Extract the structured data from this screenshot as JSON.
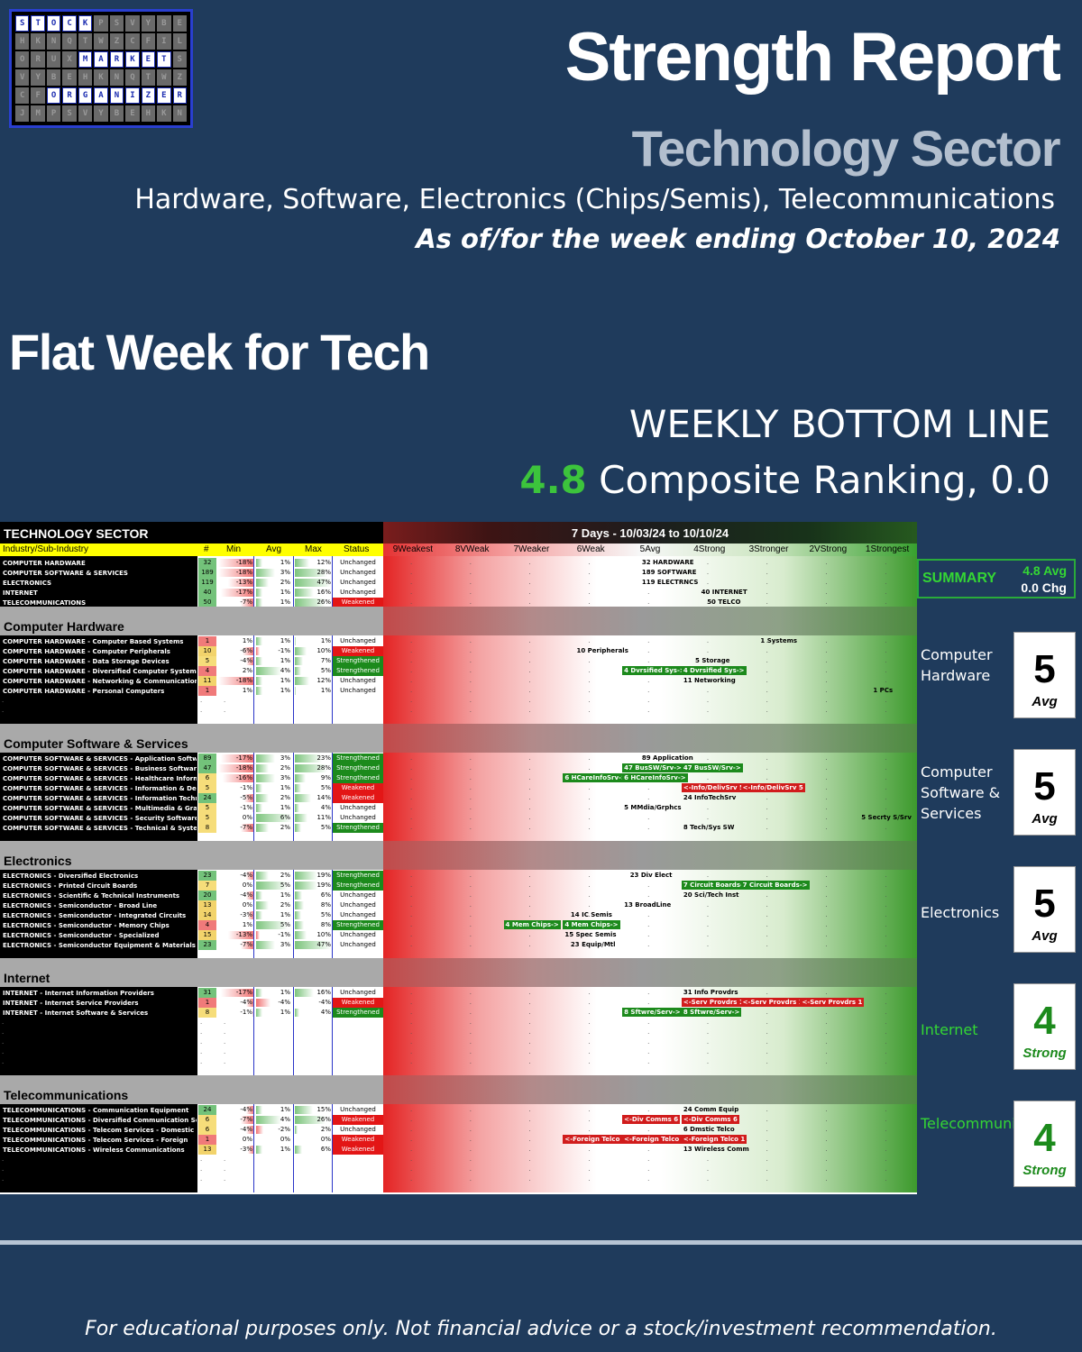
{
  "header": {
    "title": "Strength Report",
    "subtitle": "Technology Sector",
    "description": "Hardware, Software, Electronics (Chips/Semis), Telecommunications",
    "date_line": "As of/for the week ending October 10, 2024"
  },
  "logo": {
    "row1": [
      "S",
      "T",
      "O",
      "C",
      "K"
    ],
    "row3": [
      "M",
      "A",
      "R",
      "K",
      "E",
      "T"
    ],
    "row5": [
      "O",
      "R",
      "G",
      "A",
      "N",
      "I",
      "Z",
      "E",
      "R"
    ]
  },
  "headline": "Flat Week for Tech",
  "bottom_line": {
    "label": "WEEKLY BOTTOM LINE",
    "score": "4.8",
    "text": " Composite Ranking, 0.0"
  },
  "table": {
    "sector_title": "TECHNOLOGY SECTOR",
    "period": "7 Days - 10/03/24 to 10/10/24",
    "headers": [
      "Industry/Sub-Industry",
      "#",
      "Min",
      "Avg",
      "Max",
      "Status"
    ],
    "zones": [
      "9Weakest",
      "8VWeak",
      "7Weaker",
      "6Weak",
      "5Avg",
      "4Strong",
      "3Stronger",
      "2VStrong",
      "1Strongest"
    ],
    "sector_rows": [
      {
        "name": "COMPUTER HARDWARE",
        "count": "32",
        "min": "-18%",
        "avg": "1%",
        "max": "12%",
        "status": "Unchanged",
        "marks": [
          {
            "text": "32 HARDWARE",
            "zone": 4.3,
            "c": ""
          }
        ]
      },
      {
        "name": "COMPUTER SOFTWARE & SERVICES",
        "count": "189",
        "min": "-18%",
        "avg": "3%",
        "max": "28%",
        "status": "Unchanged",
        "marks": [
          {
            "text": "189 SOFTWARE",
            "zone": 4.3,
            "c": ""
          }
        ]
      },
      {
        "name": "ELECTRONICS",
        "count": "119",
        "min": "-13%",
        "avg": "2%",
        "max": "47%",
        "status": "Unchanged",
        "marks": [
          {
            "text": "119 ELECTRNCS",
            "zone": 4.3,
            "c": ""
          }
        ]
      },
      {
        "name": "INTERNET",
        "count": "40",
        "min": "-17%",
        "avg": "1%",
        "max": "16%",
        "status": "Unchanged",
        "marks": [
          {
            "text": "40 INTERNET",
            "zone": 5.3,
            "c": ""
          }
        ]
      },
      {
        "name": "TELECOMMUNICATIONS",
        "count": "50",
        "min": "-7%",
        "avg": "1%",
        "max": "26%",
        "status": "Weakened",
        "marks": [
          {
            "text": "50 TELCO",
            "zone": 5.4,
            "c": ""
          }
        ]
      }
    ],
    "groups": [
      {
        "title": "Computer Hardware",
        "rows": [
          {
            "name": "COMPUTER HARDWARE - Computer Based Systems",
            "count": "1",
            "min": "1%",
            "avg": "1%",
            "max": "1%",
            "status": "Unchanged",
            "marks": [
              {
                "text": "1 Systems",
                "zone": 6.3,
                "c": ""
              }
            ]
          },
          {
            "name": "COMPUTER HARDWARE - Computer Peripherals",
            "count": "10",
            "min": "-6%",
            "avg": "-1%",
            "max": "10%",
            "status": "Weakened",
            "marks": [
              {
                "text": "10 Peripherals",
                "zone": 3.2,
                "c": ""
              }
            ]
          },
          {
            "name": "COMPUTER HARDWARE - Data Storage Devices",
            "count": "5",
            "min": "-4%",
            "avg": "1%",
            "max": "7%",
            "status": "Strengthened",
            "marks": [
              {
                "text": "5 Storage",
                "zone": 5.2,
                "c": ""
              }
            ]
          },
          {
            "name": "COMPUTER HARDWARE - Diversified Computer Systems",
            "count": "4",
            "min": "2%",
            "avg": "4%",
            "max": "5%",
            "status": "Strengthened",
            "marks": [
              {
                "text": "4 Dvrsified Sys->",
                "zone": 4.0,
                "c": "g"
              },
              {
                "text": "4 Dvrsified Sys->",
                "zone": 5.0,
                "c": "g"
              }
            ]
          },
          {
            "name": "COMPUTER HARDWARE - Networking & Communication Dev",
            "count": "11",
            "min": "-18%",
            "avg": "1%",
            "max": "12%",
            "status": "Unchanged",
            "marks": [
              {
                "text": "11 Networking",
                "zone": 5.0,
                "c": ""
              }
            ]
          },
          {
            "name": "COMPUTER HARDWARE - Personal Computers",
            "count": "1",
            "min": "1%",
            "avg": "1%",
            "max": "1%",
            "status": "Unchanged",
            "marks": [
              {
                "text": "1 PCs",
                "zone": 8.2,
                "c": ""
              }
            ]
          }
        ],
        "panel_label": "Computer Hardware",
        "score": "5",
        "tag": "Avg"
      },
      {
        "title": "Computer Software & Services",
        "rows": [
          {
            "name": "COMPUTER SOFTWARE & SERVICES - Application Software",
            "count": "89",
            "min": "-17%",
            "avg": "3%",
            "max": "23%",
            "status": "Strengthened",
            "marks": [
              {
                "text": "89 Application",
                "zone": 4.3,
                "c": ""
              }
            ]
          },
          {
            "name": "COMPUTER SOFTWARE & SERVICES - Business Software & Services",
            "count": "47",
            "min": "-18%",
            "avg": "2%",
            "max": "28%",
            "status": "Strengthened",
            "marks": [
              {
                "text": "47 BusSW/Srv->",
                "zone": 4.0,
                "c": "g"
              },
              {
                "text": "47 BusSW/Srv->",
                "zone": 5.0,
                "c": "g"
              }
            ]
          },
          {
            "name": "COMPUTER SOFTWARE & SERVICES - Healthcare Information Services",
            "count": "6",
            "min": "-16%",
            "avg": "3%",
            "max": "9%",
            "status": "Strengthened",
            "marks": [
              {
                "text": "6 HCareInfoSrv->",
                "zone": 3.0,
                "c": "g"
              },
              {
                "text": "6 HCareInfoSrv->",
                "zone": 4.0,
                "c": "g"
              }
            ]
          },
          {
            "name": "COMPUTER SOFTWARE & SERVICES - Information & Delivery Services",
            "count": "5",
            "min": "-1%",
            "avg": "1%",
            "max": "5%",
            "status": "Weakened",
            "marks": [
              {
                "text": "<-Info/DelivSrv 5",
                "zone": 5.0,
                "c": "r"
              },
              {
                "text": "<-Info/DelivSrv 5",
                "zone": 6.0,
                "c": "r"
              }
            ]
          },
          {
            "name": "COMPUTER SOFTWARE & SERVICES - Information Technology Services",
            "count": "24",
            "min": "-5%",
            "avg": "2%",
            "max": "14%",
            "status": "Weakened",
            "marks": [
              {
                "text": "24 InfoTechSrv",
                "zone": 5.0,
                "c": ""
              }
            ]
          },
          {
            "name": "COMPUTER SOFTWARE & SERVICES - Multimedia & Graphics Software",
            "count": "5",
            "min": "-1%",
            "avg": "1%",
            "max": "4%",
            "status": "Unchanged",
            "marks": [
              {
                "text": "5 MMdia/Grphcs",
                "zone": 4.0,
                "c": ""
              }
            ]
          },
          {
            "name": "COMPUTER SOFTWARE & SERVICES - Security Software & Services",
            "count": "5",
            "min": "0%",
            "avg": "6%",
            "max": "11%",
            "status": "Unchanged",
            "marks": [
              {
                "text": "5 Secrty S/Srv",
                "zone": 8.0,
                "c": ""
              }
            ]
          },
          {
            "name": "COMPUTER SOFTWARE & SERVICES - Technical & System Software",
            "count": "8",
            "min": "-7%",
            "avg": "2%",
            "max": "5%",
            "status": "Strengthened",
            "marks": [
              {
                "text": "8 Tech/Sys SW",
                "zone": 5.0,
                "c": ""
              }
            ]
          }
        ],
        "panel_label": "Computer Software & Services",
        "score": "5",
        "tag": "Avg"
      },
      {
        "title": "Electronics",
        "rows": [
          {
            "name": "ELECTRONICS - Diversified Electronics",
            "count": "23",
            "min": "-4%",
            "avg": "2%",
            "max": "19%",
            "status": "Strengthened",
            "marks": [
              {
                "text": "23 Div Elect",
                "zone": 4.1,
                "c": ""
              }
            ]
          },
          {
            "name": "ELECTRONICS - Printed Circuit Boards",
            "count": "7",
            "min": "0%",
            "avg": "5%",
            "max": "19%",
            "status": "Strengthened",
            "marks": [
              {
                "text": "7 Circuit Boards->",
                "zone": 5.0,
                "c": "g"
              },
              {
                "text": "7 Circuit Boards->",
                "zone": 6.0,
                "c": "g"
              }
            ]
          },
          {
            "name": "ELECTRONICS - Scientific & Technical Instruments",
            "count": "20",
            "min": "-4%",
            "avg": "1%",
            "max": "6%",
            "status": "Unchanged",
            "marks": [
              {
                "text": "20 Sci/Tech Inst",
                "zone": 5.0,
                "c": ""
              }
            ]
          },
          {
            "name": "ELECTRONICS - Semiconductor - Broad Line",
            "count": "13",
            "min": "0%",
            "avg": "2%",
            "max": "8%",
            "status": "Unchanged",
            "marks": [
              {
                "text": "13 BroadLine",
                "zone": 4.0,
                "c": ""
              }
            ]
          },
          {
            "name": "ELECTRONICS - Semiconductor - Integrated Circuits",
            "count": "14",
            "min": "-3%",
            "avg": "1%",
            "max": "5%",
            "status": "Unchanged",
            "marks": [
              {
                "text": "14 IC Semis",
                "zone": 3.1,
                "c": ""
              }
            ]
          },
          {
            "name": "ELECTRONICS - Semiconductor - Memory Chips",
            "count": "4",
            "min": "1%",
            "avg": "5%",
            "max": "8%",
            "status": "Strengthened",
            "marks": [
              {
                "text": "4 Mem Chips->",
                "zone": 2.0,
                "c": "g"
              },
              {
                "text": "4 Mem Chips->",
                "zone": 3.0,
                "c": "g"
              }
            ]
          },
          {
            "name": "ELECTRONICS - Semiconductor - Specialized",
            "count": "15",
            "min": "-13%",
            "avg": "-1%",
            "max": "10%",
            "status": "Unchanged",
            "marks": [
              {
                "text": "15 Spec Semis",
                "zone": 3.0,
                "c": ""
              }
            ]
          },
          {
            "name": "ELECTRONICS - Semiconductor Equipment & Materials",
            "count": "23",
            "min": "-7%",
            "avg": "3%",
            "max": "47%",
            "status": "Unchanged",
            "marks": [
              {
                "text": "23 Equip/Mtl",
                "zone": 3.1,
                "c": ""
              }
            ]
          }
        ],
        "panel_label": "Electronics",
        "score": "5",
        "tag": "Avg"
      },
      {
        "title": "Internet",
        "rows": [
          {
            "name": "INTERNET - Internet Information Providers",
            "count": "31",
            "min": "-17%",
            "avg": "1%",
            "max": "16%",
            "status": "Unchanged",
            "marks": [
              {
                "text": "31 Info Provdrs",
                "zone": 5.0,
                "c": ""
              }
            ]
          },
          {
            "name": "INTERNET - Internet Service Providers",
            "count": "1",
            "min": "-4%",
            "avg": "-4%",
            "max": "-4%",
            "status": "Weakened",
            "marks": [
              {
                "text": "<-Serv Provdrs 1",
                "zone": 5.0,
                "c": "r"
              },
              {
                "text": "<-Serv Provdrs 1",
                "zone": 6.0,
                "c": "r"
              },
              {
                "text": "<-Serv Provdrs 1",
                "zone": 7.0,
                "c": "r"
              }
            ]
          },
          {
            "name": "INTERNET - Internet Software & Services",
            "count": "8",
            "min": "-1%",
            "avg": "1%",
            "max": "4%",
            "status": "Strengthened",
            "marks": [
              {
                "text": "8 Sftwre/Serv->",
                "zone": 4.0,
                "c": "g"
              },
              {
                "text": "8 Sftwre/Serv->",
                "zone": 5.0,
                "c": "g"
              }
            ]
          }
        ],
        "panel_label": "Internet",
        "score": "4",
        "tag": "Strong"
      },
      {
        "title": "Telecommunications",
        "rows": [
          {
            "name": "TELECOMMUNICATIONS - Communication Equipment",
            "count": "24",
            "min": "-4%",
            "avg": "1%",
            "max": "15%",
            "status": "Unchanged",
            "marks": [
              {
                "text": "24 Comm Equip",
                "zone": 5.0,
                "c": ""
              }
            ]
          },
          {
            "name": "TELECOMMUNICATIONS - Diversified Communication Services",
            "count": "6",
            "min": "-7%",
            "avg": "4%",
            "max": "26%",
            "status": "Weakened",
            "marks": [
              {
                "text": "<-Div Comms 6",
                "zone": 4.0,
                "c": "r"
              },
              {
                "text": "<-Div Comms 6",
                "zone": 5.0,
                "c": "r"
              }
            ]
          },
          {
            "name": "TELECOMMUNICATIONS - Telecom Services - Domestic",
            "count": "6",
            "min": "-4%",
            "avg": "-2%",
            "max": "2%",
            "status": "Unchanged",
            "marks": [
              {
                "text": "6 Dmstic Telco",
                "zone": 5.0,
                "c": ""
              }
            ]
          },
          {
            "name": "TELECOMMUNICATIONS - Telecom Services - Foreign",
            "count": "1",
            "min": "0%",
            "avg": "0%",
            "max": "0%",
            "status": "Weakened",
            "marks": [
              {
                "text": "<-Foreign Telco 1",
                "zone": 3.0,
                "c": "r"
              },
              {
                "text": "<-Foreign Telco 1",
                "zone": 4.0,
                "c": "r"
              },
              {
                "text": "<-Foreign Telco 1",
                "zone": 5.0,
                "c": "r"
              }
            ]
          },
          {
            "name": "TELECOMMUNICATIONS - Wireless Communications",
            "count": "13",
            "min": "-3%",
            "avg": "1%",
            "max": "6%",
            "status": "Weakened",
            "marks": [
              {
                "text": "13 Wireless Comm",
                "zone": 5.0,
                "c": ""
              }
            ]
          }
        ],
        "panel_label": "Telecommunications",
        "score": "4",
        "tag": "Strong"
      }
    ]
  },
  "summary": {
    "label": "SUMMARY",
    "avg": "4.8 Avg",
    "change": "0.0 Chg"
  },
  "footer": "For educational purposes only. Not financial advice or a stock/investment recommendation.",
  "colors": {
    "background": "#1f3b5c",
    "composite_score": "#3cc43c",
    "strengthened": "#1c8a1c",
    "weakened": "#e31616"
  }
}
